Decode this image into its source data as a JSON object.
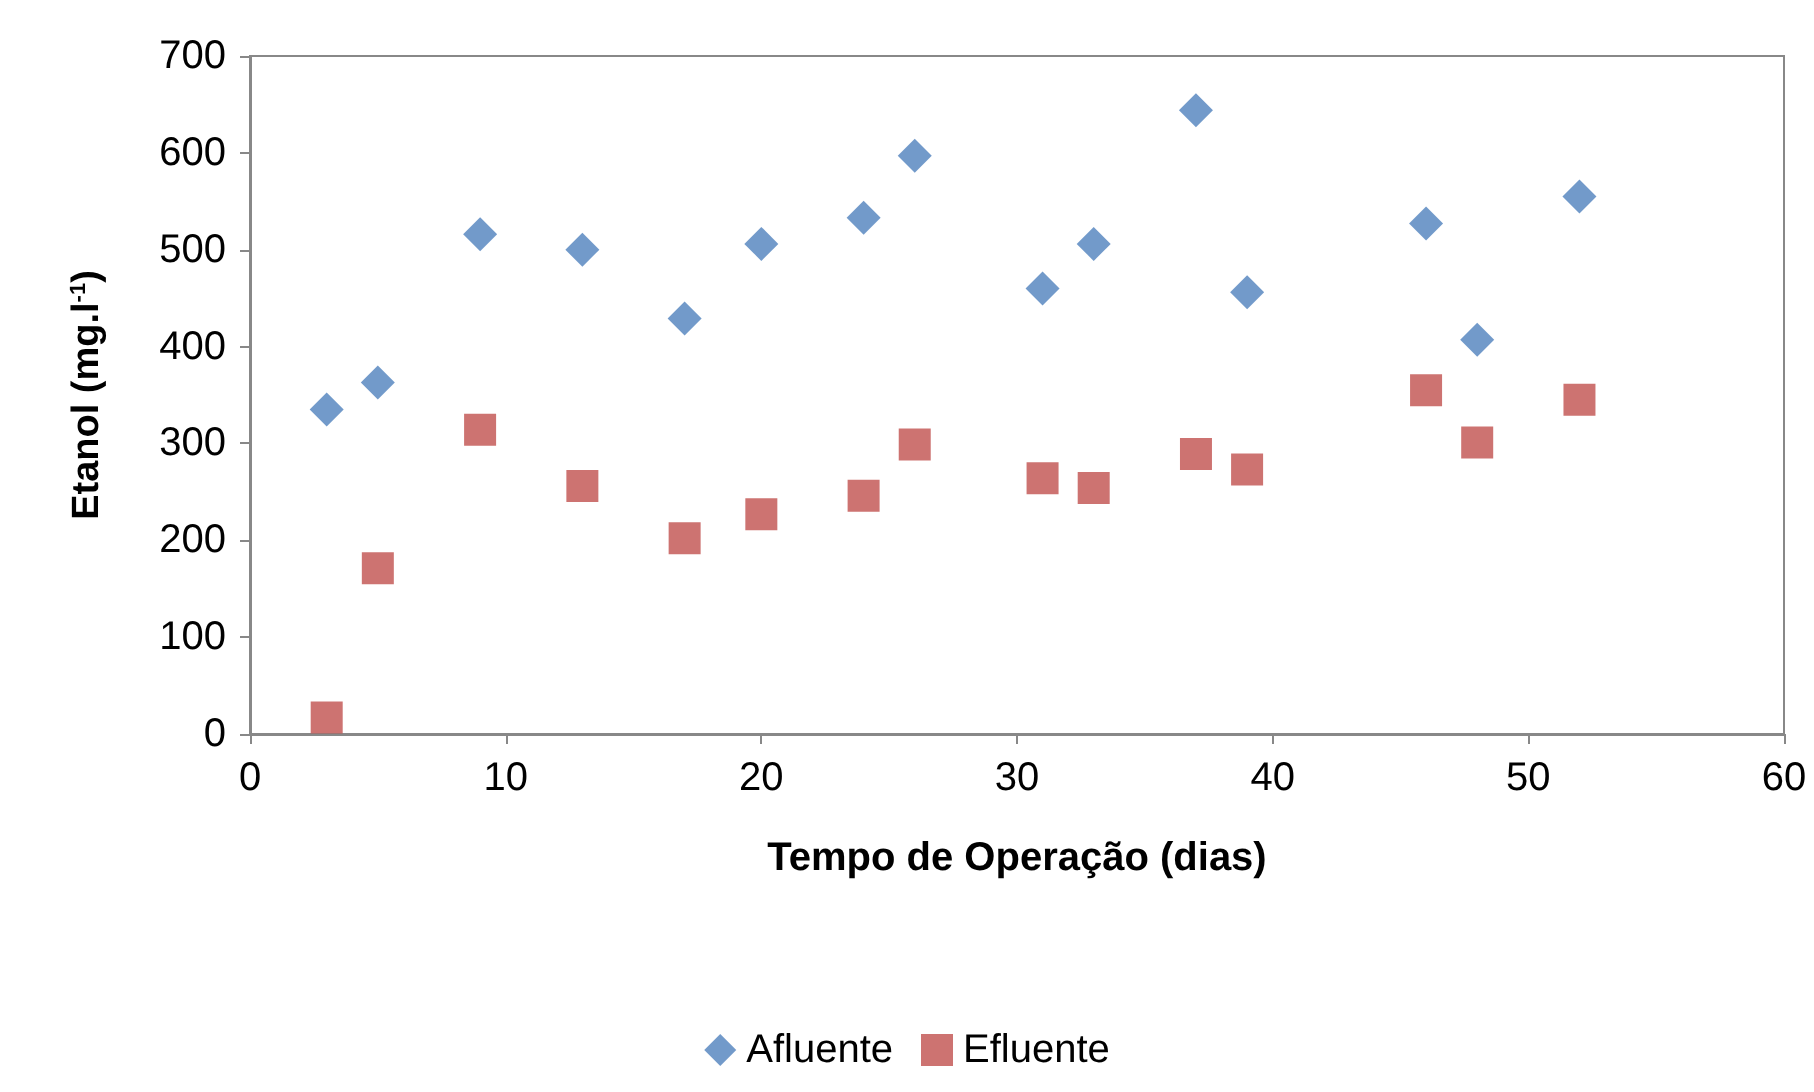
{
  "chart_data": {
    "type": "scatter",
    "xlabel": "Tempo de Operação (dias)",
    "ylabel": "Etanol (mg.l$^{-1}$)",
    "xlim": [
      0,
      60
    ],
    "xticks": [
      0,
      10,
      20,
      30,
      40,
      50,
      60
    ],
    "ylim": [
      0,
      700
    ],
    "yticks": [
      0,
      100,
      200,
      300,
      400,
      500,
      600,
      700
    ],
    "grid": false,
    "legend": "bottom",
    "x": [
      3,
      5,
      9,
      13,
      17,
      20,
      24,
      26,
      31,
      33,
      37,
      39,
      46,
      48,
      52
    ],
    "series": [
      {
        "name": "Afluente",
        "color": "#4f81bd",
        "marker": "diamond",
        "values": [
          335,
          363,
          516,
          500,
          429,
          506,
          533,
          597,
          460,
          506,
          644,
          456,
          527,
          407,
          555
        ]
      },
      {
        "name": "Efluente",
        "color": "#c0504d",
        "marker": "square",
        "values": [
          17,
          171,
          314,
          256,
          202,
          227,
          246,
          299,
          264,
          254,
          289,
          273,
          355,
          301,
          345
        ]
      }
    ]
  }
}
